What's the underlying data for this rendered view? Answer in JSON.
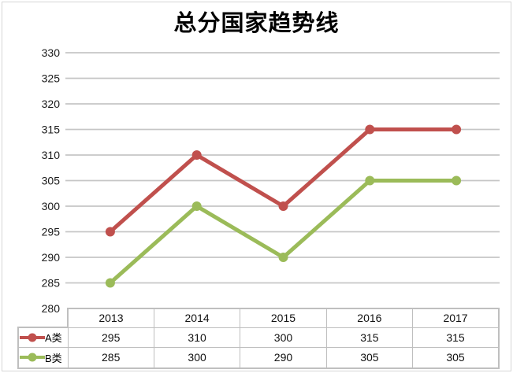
{
  "chart_data": {
    "type": "line",
    "title": "总分国家趋势线",
    "categories": [
      "2013",
      "2014",
      "2015",
      "2016",
      "2017"
    ],
    "series": [
      {
        "name": "A类",
        "color": "#C0504D",
        "values": [
          295,
          310,
          300,
          315,
          315
        ]
      },
      {
        "name": "B类",
        "color": "#9BBB59",
        "values": [
          285,
          300,
          290,
          305,
          305
        ]
      }
    ],
    "ylim": [
      280,
      330
    ],
    "ytick_step": 5,
    "ytick_labels": [
      "280",
      "285",
      "290",
      "295",
      "300",
      "305",
      "310",
      "315",
      "320",
      "325",
      "330"
    ],
    "grid": "horizontal",
    "legend_position": "data-table-left",
    "marker": "circle",
    "colors": {
      "gridline": "#C6C6C6",
      "axis_text": "#1A1A1A",
      "table_border": "#BFBFBF",
      "chart_frame": "#D6D6D6",
      "background": "#FFFFFF"
    }
  }
}
